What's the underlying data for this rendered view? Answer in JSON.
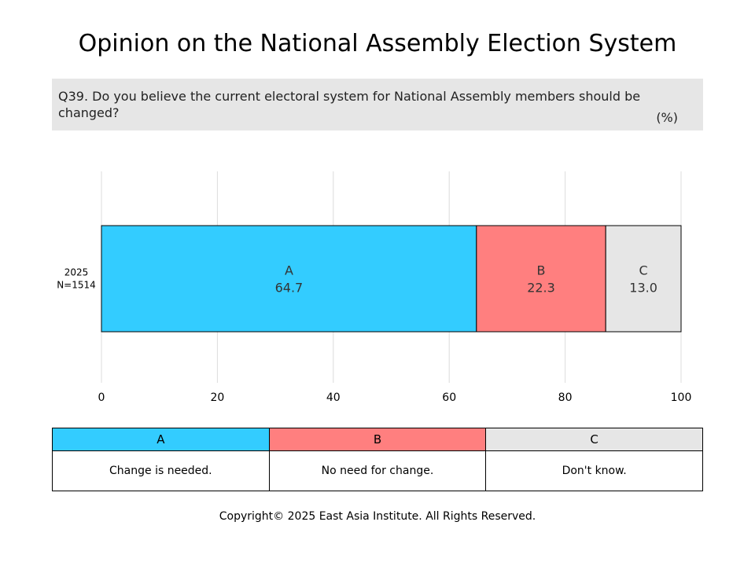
{
  "title": "Opinion on the National Assembly Election System",
  "question": "Q39. Do you believe the current electoral system for National Assembly members should be changed?",
  "unit": "(%)",
  "chart_data": {
    "type": "bar",
    "orientation": "horizontal",
    "stacked": true,
    "categories": [
      "2025\nN=1514"
    ],
    "series": [
      {
        "name": "A",
        "values": [
          64.7
        ],
        "color": "#33ccff"
      },
      {
        "name": "B",
        "values": [
          22.3
        ],
        "color": "#ff7f7f"
      },
      {
        "name": "C",
        "values": [
          13.0
        ],
        "color": "#e6e6e6"
      }
    ],
    "xlim": [
      0,
      100
    ],
    "xticks": [
      0,
      20,
      40,
      60,
      80,
      100
    ],
    "grid": true
  },
  "legend": {
    "headers": [
      {
        "label": "A",
        "color": "#33ccff"
      },
      {
        "label": "B",
        "color": "#ff7f7f"
      },
      {
        "label": "C",
        "color": "#e6e6e6"
      }
    ],
    "descriptions": [
      "Change is needed.",
      "No need for change.",
      "Don't know."
    ]
  },
  "copyright": "Copyright© 2025 East Asia Institute. All Rights Reserved."
}
